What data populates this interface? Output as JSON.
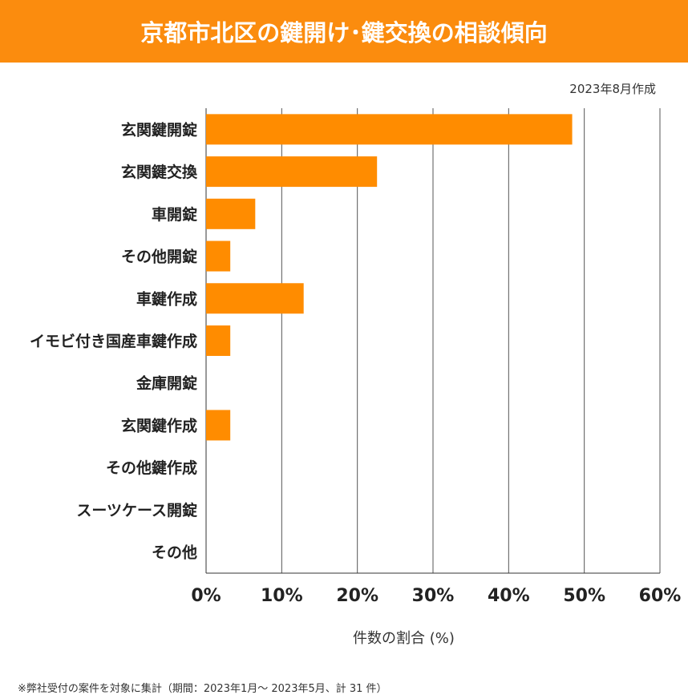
{
  "title": "京都市北区の鍵開け･鍵交換の相談傾向",
  "date_note": "2023年8月作成",
  "footnote": "※弊社受付の案件を対象に集計（期間：2023年1月～ 2023年5月、計 31 件）",
  "chart_data": {
    "type": "bar",
    "orientation": "horizontal",
    "categories": [
      "玄関鍵開錠",
      "玄関鍵交換",
      "車開錠",
      "その他開錠",
      "車鍵作成",
      "イモビ付き国産車鍵作成",
      "金庫開錠",
      "玄関鍵作成",
      "その他鍵作成",
      "スーツケース開錠",
      "その他"
    ],
    "values": [
      48.4,
      22.6,
      6.5,
      3.2,
      12.9,
      3.2,
      0,
      3.2,
      0,
      0,
      0
    ],
    "xlabel": "件数の割合 (%)",
    "xlim": [
      0,
      60
    ],
    "xticks": [
      "0%",
      "10%",
      "20%",
      "30%",
      "40%",
      "50%",
      "60%"
    ],
    "grid": true,
    "bar_color": "#FF8C00"
  }
}
